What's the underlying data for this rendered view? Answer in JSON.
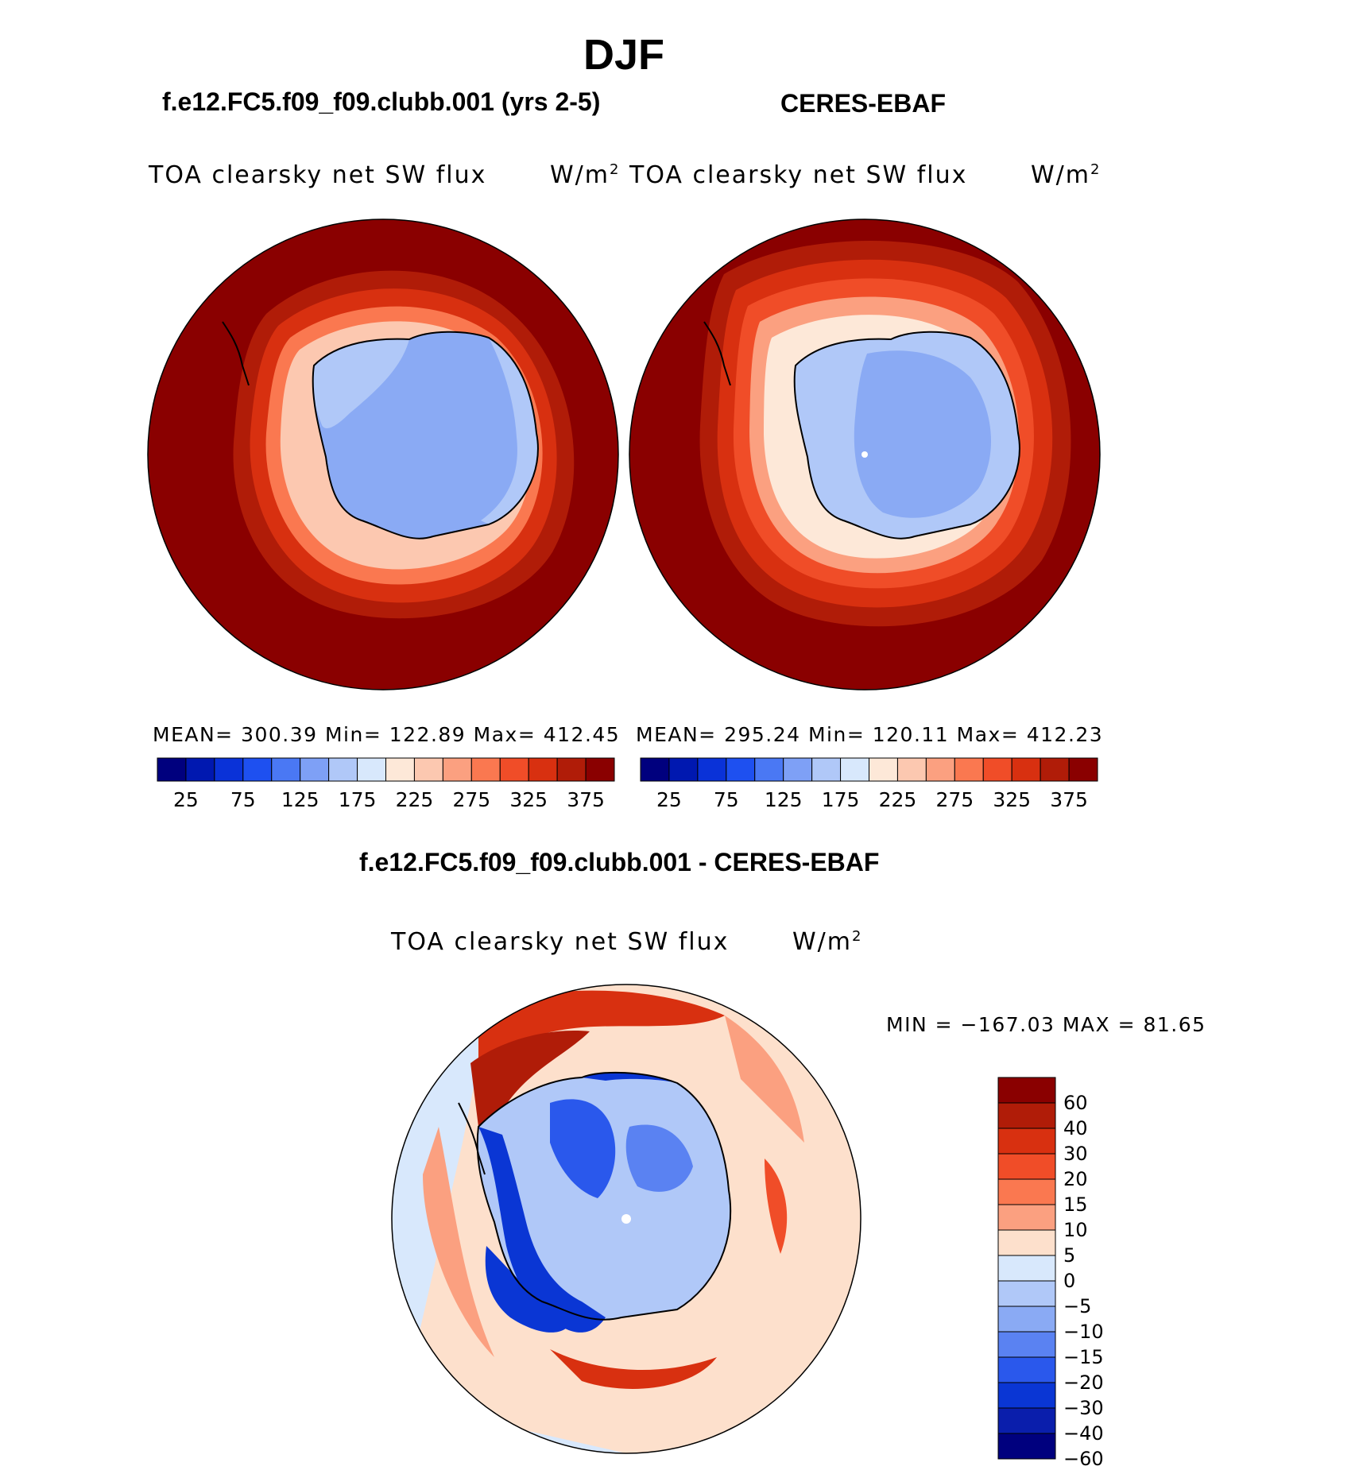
{
  "title": "DJF",
  "panels": {
    "model": {
      "caption": "f.e12.FC5.f09_f09.clubb.001 (yrs 2-5)",
      "plot_title": "TOA clearsky net SW flux",
      "units": "W/m",
      "units_sup": "2",
      "stats": "MEAN= 300.39   Min= 122.89   Max= 412.45"
    },
    "obs": {
      "caption": "CERES-EBAF",
      "plot_title": "TOA clearsky net SW flux",
      "units": "W/m",
      "units_sup": "2",
      "stats": "MEAN= 295.24   Min= 120.11   Max= 412.23"
    },
    "diff": {
      "caption": "f.e12.FC5.f09_f09.clubb.001 - CERES-EBAF",
      "plot_title": "TOA clearsky net SW flux",
      "units": "W/m",
      "units_sup": "2",
      "stats": "MIN = −167.03 MAX =  81.65"
    }
  },
  "abs_colorbar": {
    "labels": [
      "25",
      "75",
      "125",
      "175",
      "225",
      "275",
      "325",
      "375"
    ],
    "colors": [
      "#00007e",
      "#0018b0",
      "#0a32d8",
      "#1e50f0",
      "#4a78f4",
      "#7ea0f6",
      "#b0c8f8",
      "#d8e8fc",
      "#fde8d8",
      "#fcc8b0",
      "#fba080",
      "#fa7850",
      "#f04d28",
      "#d83010",
      "#b01c08",
      "#8a0000"
    ]
  },
  "diff_colorbar": {
    "labels": [
      "60",
      "40",
      "30",
      "20",
      "15",
      "10",
      "5",
      "0",
      "−5",
      "−10",
      "−15",
      "−20",
      "−30",
      "−40",
      "−60"
    ],
    "colors": [
      "#8a0000",
      "#b01c08",
      "#d83010",
      "#f04d28",
      "#fa7850",
      "#fba080",
      "#fde0cc",
      "#d8e8fc",
      "#b0c8f8",
      "#8aaaf4",
      "#5a82f2",
      "#2a58ec",
      "#0a36d4",
      "#0a1eac",
      "#00007e"
    ]
  }
}
